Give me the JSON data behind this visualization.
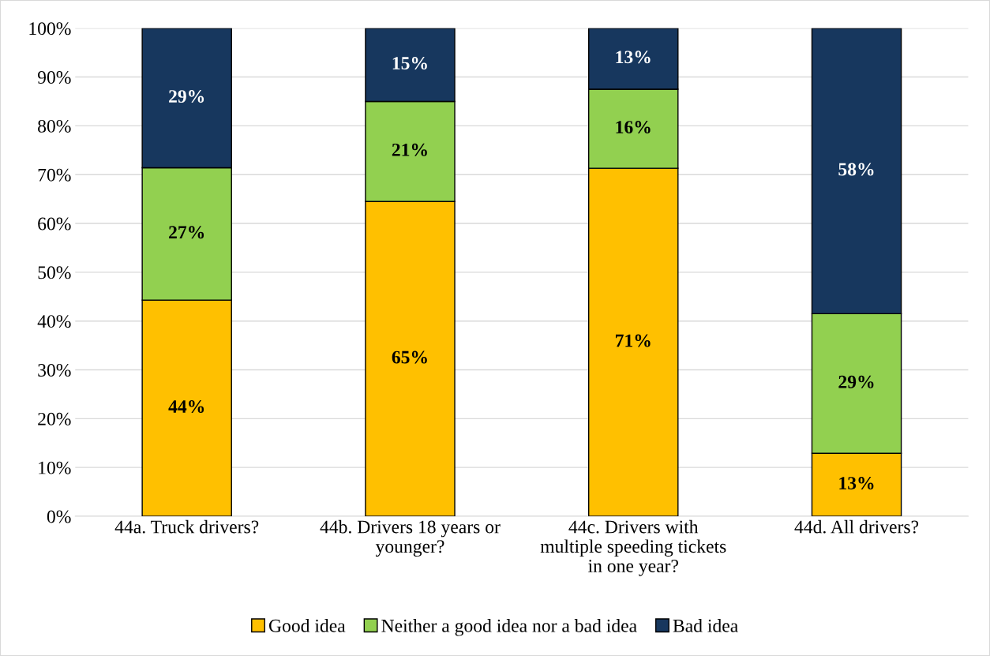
{
  "chart_data": {
    "type": "bar",
    "stacked": true,
    "categories": [
      "44a. Truck drivers?",
      "44b. Drivers 18 years or younger?",
      "44c. Drivers with multiple speeding tickets in one year?",
      "44d. All drivers?"
    ],
    "series": [
      {
        "name": "Good idea",
        "color": "#ffc000",
        "values": [
          44.3,
          64.5,
          71.3,
          12.9
        ],
        "value_labels": [
          "44%",
          "65%",
          "71%",
          "13%"
        ]
      },
      {
        "name": "Neither a good idea nor a bad idea",
        "color": "#92d050",
        "values": [
          27.1,
          20.5,
          16.2,
          28.6
        ],
        "value_labels": [
          "27%",
          "21%",
          "16%",
          "29%"
        ]
      },
      {
        "name": "Bad idea",
        "color": "#17375e",
        "values": [
          28.6,
          15.0,
          12.5,
          58.5
        ],
        "value_labels": [
          "29%",
          "15%",
          "13%",
          "58%"
        ]
      }
    ],
    "ylim": [
      0,
      100
    ],
    "yticks": [
      {
        "value": 0,
        "label": "0%"
      },
      {
        "value": 10,
        "label": "10%"
      },
      {
        "value": 20,
        "label": "20%"
      },
      {
        "value": 30,
        "label": "30%"
      },
      {
        "value": 40,
        "label": "40%"
      },
      {
        "value": 50,
        "label": "50%"
      },
      {
        "value": 60,
        "label": "60%"
      },
      {
        "value": 70,
        "label": "70%"
      },
      {
        "value": 80,
        "label": "80%"
      },
      {
        "value": 90,
        "label": "90%"
      },
      {
        "value": 100,
        "label": "100%"
      }
    ],
    "grid": "y",
    "legend": "bottom"
  }
}
